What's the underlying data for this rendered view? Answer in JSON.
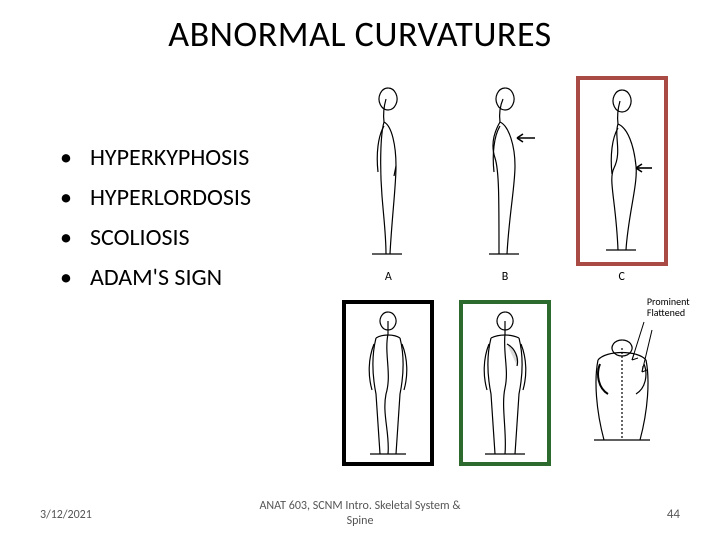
{
  "title": "ABNORMAL CURVATURES",
  "bullets": [
    "HYPERKYPHOSIS",
    "HYPERLORDOSIS",
    "SCOLIOSIS",
    "ADAM'S SIGN"
  ],
  "topFigures": {
    "labels": [
      "A",
      "B",
      "C"
    ],
    "highlightBox": {
      "index": 2,
      "color": "#aa4a44",
      "width": 4
    },
    "arrowOn": 1
  },
  "bottomFigures": {
    "boxes": [
      {
        "index": 0,
        "color": "#000000",
        "width": 4
      },
      {
        "index": 1,
        "color": "#2d6a2d",
        "width": 4
      }
    ],
    "annotation": {
      "index": 2,
      "lines": [
        "Prominent",
        "Flattened"
      ]
    }
  },
  "footer": {
    "date": "3/12/2021",
    "center": "ANAT 603, SCNM Intro. Skeletal System &\nSpine",
    "page": "44"
  },
  "colors": {
    "background": "#ffffff",
    "text": "#000000",
    "footerText": "#555555"
  }
}
